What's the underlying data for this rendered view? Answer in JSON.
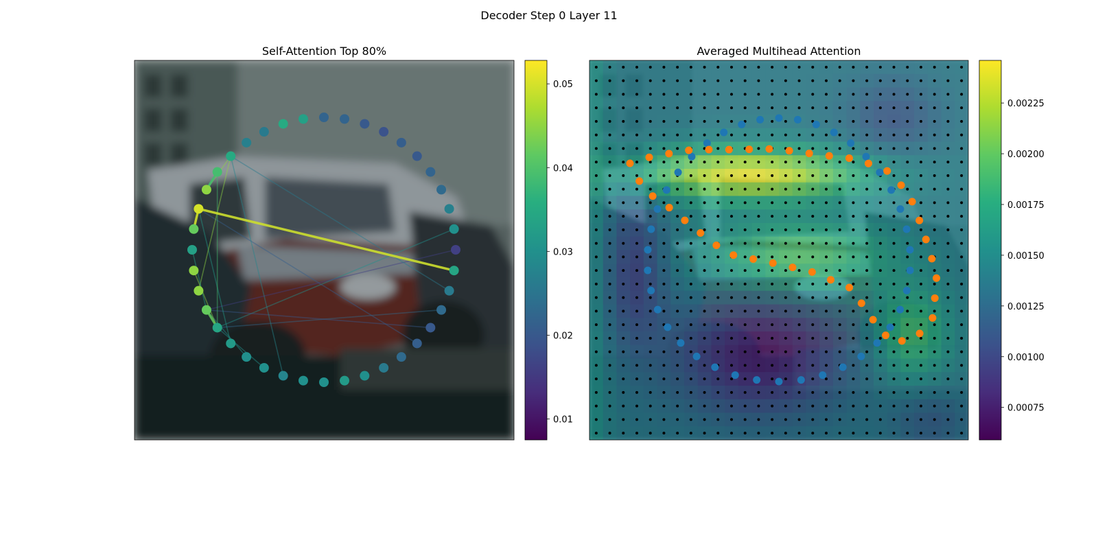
{
  "figure": {
    "title": "Decoder Step 0 Layer 11"
  },
  "chart_data": [
    {
      "type": "scatter",
      "title": "Self-Attention Top 80%",
      "background": "blurred photo of a parked red car with a white car behind it (camera image)",
      "points": {
        "count": 40,
        "shape": "closed contour (ring of query points)",
        "values": [
          0.022,
          0.022,
          0.02,
          0.019,
          0.021,
          0.02,
          0.022,
          0.023,
          0.027,
          0.03,
          0.016,
          0.034,
          0.026,
          0.023,
          0.02,
          0.021,
          0.023,
          0.026,
          0.03,
          0.032,
          0.03,
          0.03,
          0.028,
          0.03,
          0.03,
          0.032,
          0.034,
          0.042,
          0.045,
          0.045,
          0.033,
          0.042,
          0.05,
          0.045,
          0.039,
          0.035,
          0.027,
          0.026,
          0.035,
          0.033
        ]
      },
      "edges": {
        "description": "lines from each query point to the attended point(s) retained in the top 80% of attention"
      },
      "colorbar": {
        "colormap": "viridis",
        "min": 0.0075,
        "max": 0.0528,
        "ticks": [
          "0.01",
          "0.02",
          "0.03",
          "0.04",
          "0.05"
        ]
      }
    },
    {
      "type": "heatmap",
      "title": "Averaged Multihead Attention",
      "grid": {
        "rows": 28,
        "cols": 28,
        "description": "black dots mark each heatmap cell"
      },
      "overlay_series": [
        {
          "color": "#1f77b4",
          "count": 40,
          "shape": "outer ring of reference points"
        },
        {
          "color": "#ff7f0e",
          "count": 40,
          "shape": "inner contour of predicted points"
        }
      ],
      "heatmap_notes": "high attention (yellow) band across the upper middle, low (purple) in the lower left and bottom center",
      "colorbar": {
        "colormap": "viridis",
        "min": 0.00059,
        "max": 0.00246,
        "ticks": [
          "0.00075",
          "0.00100",
          "0.00125",
          "0.00150",
          "0.00175",
          "0.00200",
          "0.00225"
        ]
      }
    }
  ]
}
